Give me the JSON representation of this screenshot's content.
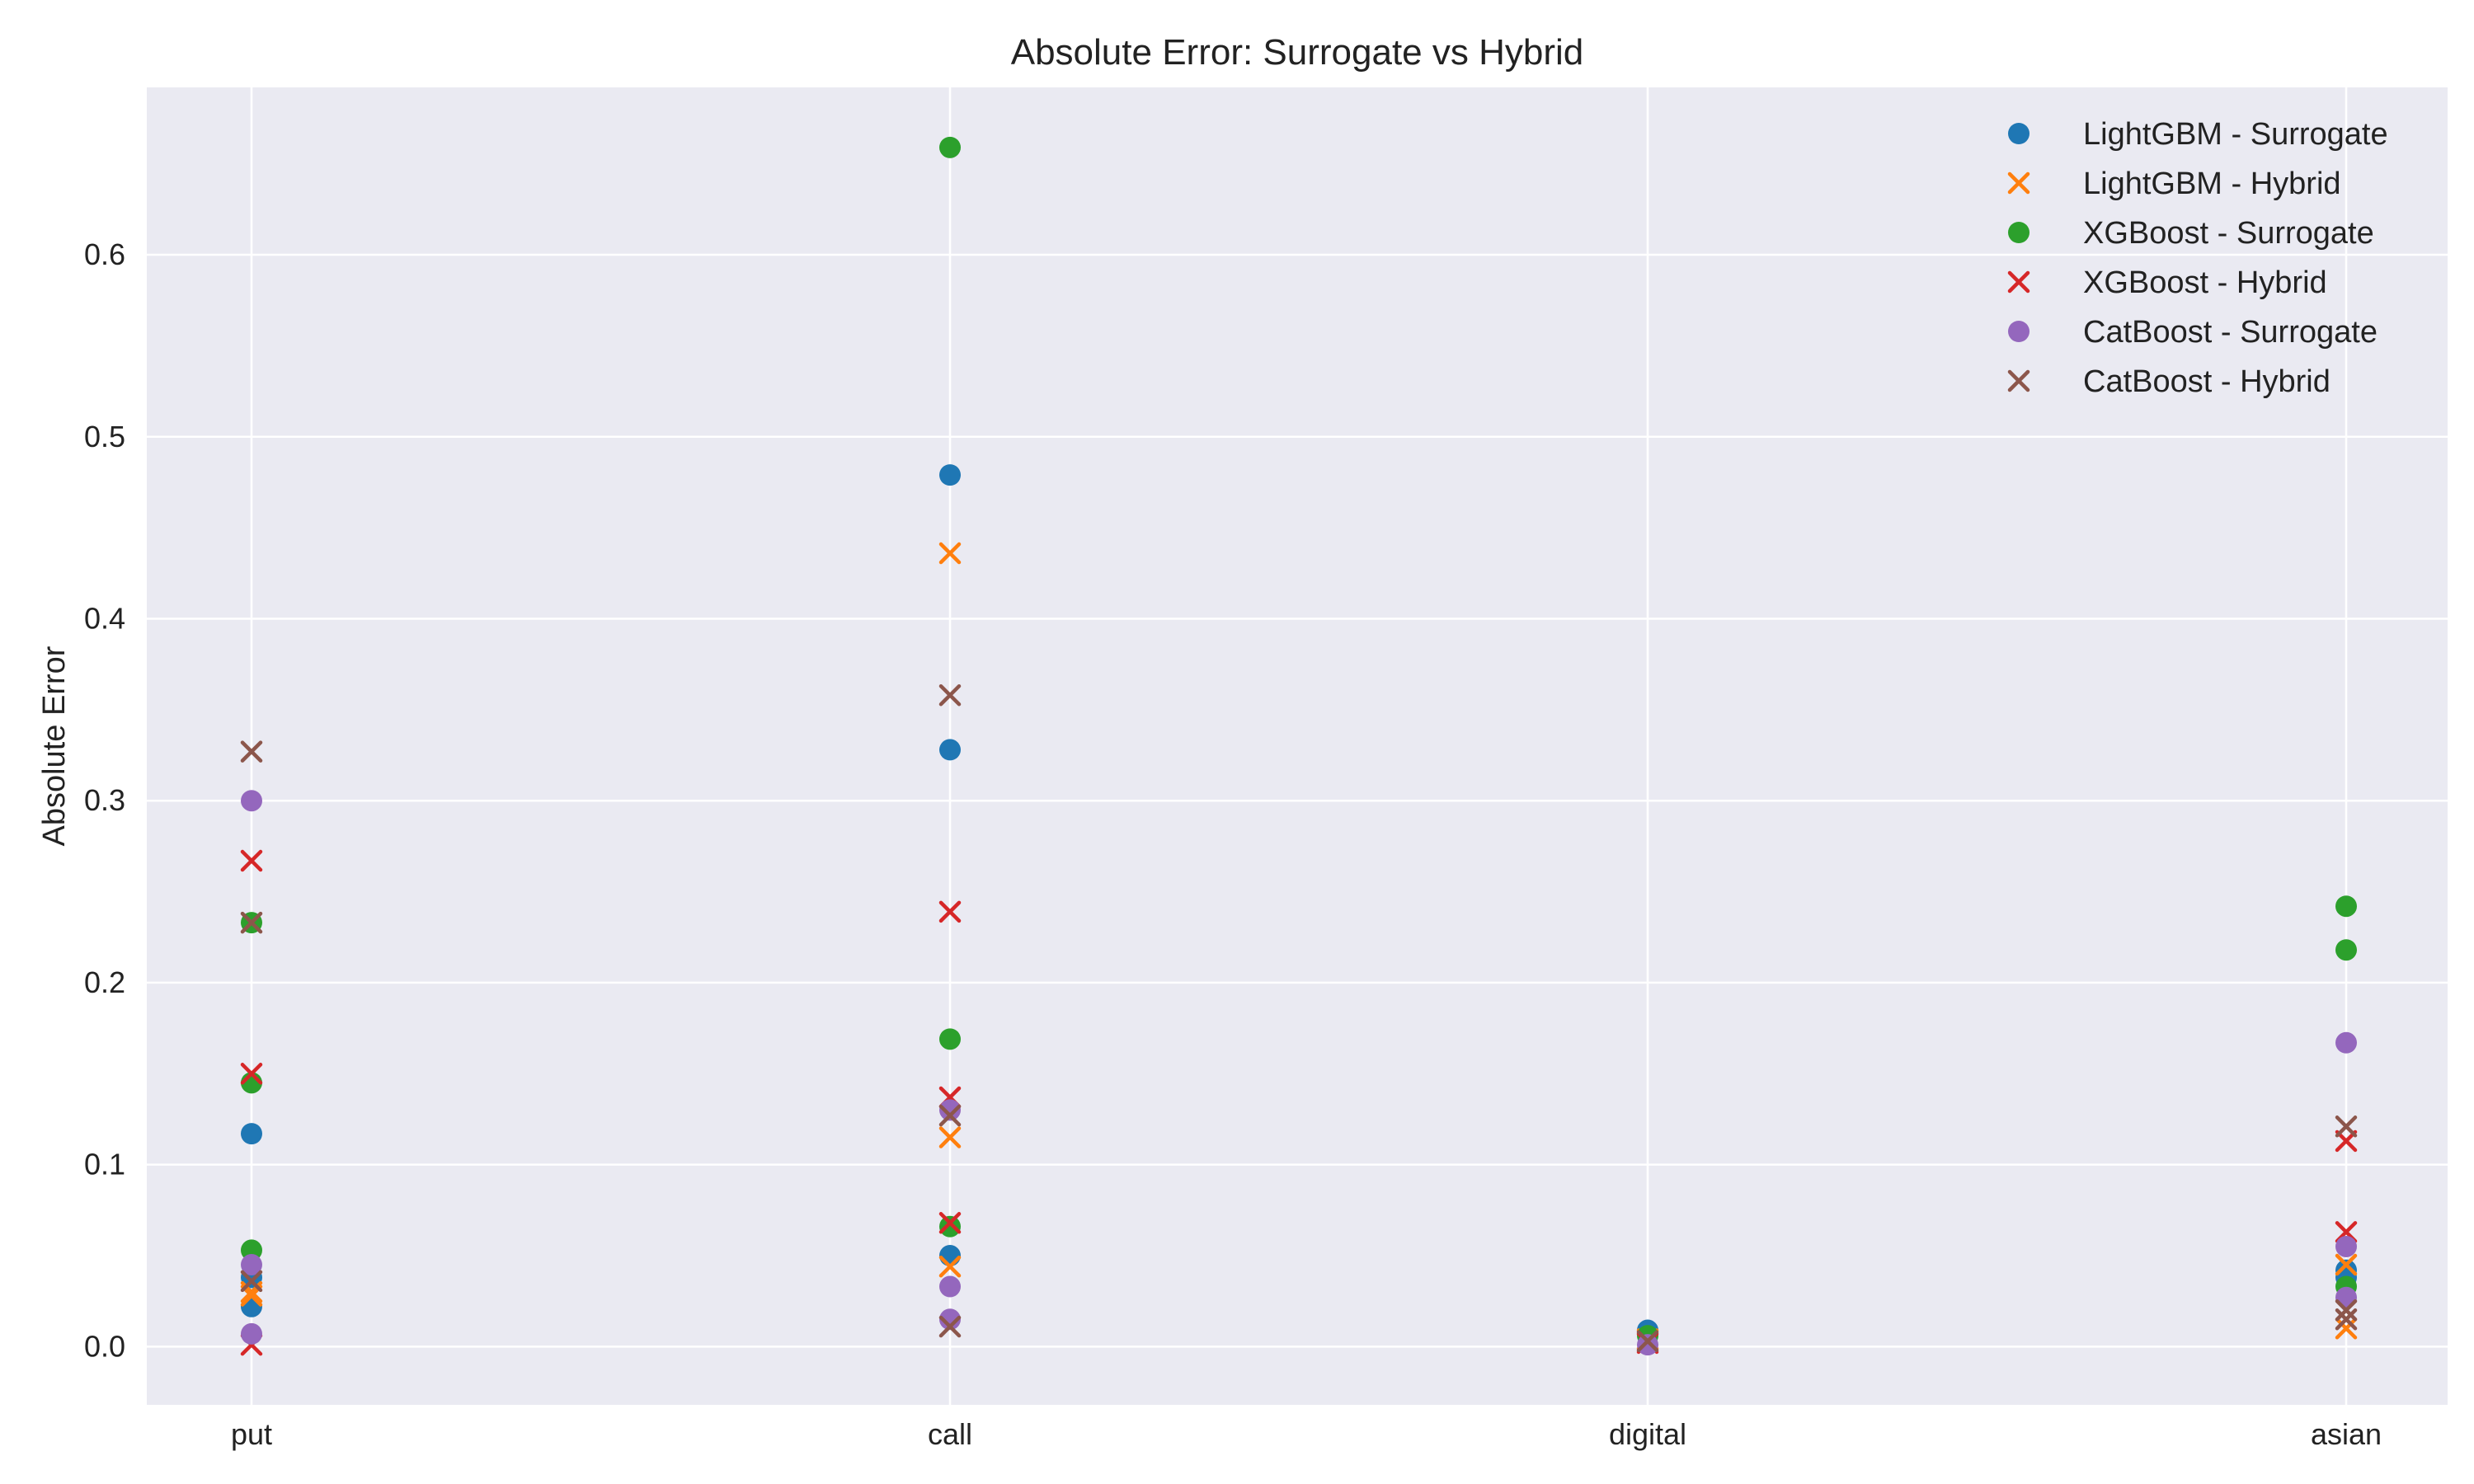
{
  "chart_data": {
    "type": "scatter",
    "title": "Absolute Error: Surrogate vs Hybrid",
    "xlabel": "",
    "ylabel": "Absolute Error",
    "categories": [
      "put",
      "call",
      "digital",
      "asian"
    ],
    "ylim": [
      -0.032,
      0.692
    ],
    "yticks": [
      0.0,
      0.1,
      0.2,
      0.3,
      0.4,
      0.5,
      0.6
    ],
    "grid": true,
    "background": "#eaeaf2",
    "legend_position": "top-right",
    "series": [
      {
        "name": "LightGBM - Surrogate",
        "marker": "circle",
        "color": "#1f77b4",
        "points": [
          {
            "x": "put",
            "y": 0.117
          },
          {
            "x": "put",
            "y": 0.038
          },
          {
            "x": "put",
            "y": 0.022
          },
          {
            "x": "call",
            "y": 0.479
          },
          {
            "x": "call",
            "y": 0.328
          },
          {
            "x": "call",
            "y": 0.05
          },
          {
            "x": "digital",
            "y": 0.009
          },
          {
            "x": "asian",
            "y": 0.042
          },
          {
            "x": "asian",
            "y": 0.038
          }
        ]
      },
      {
        "name": "LightGBM - Hybrid",
        "marker": "x",
        "color": "#ff7f0e",
        "points": [
          {
            "x": "put",
            "y": 0.03
          },
          {
            "x": "put",
            "y": 0.028
          },
          {
            "x": "call",
            "y": 0.436
          },
          {
            "x": "call",
            "y": 0.115
          },
          {
            "x": "call",
            "y": 0.044
          },
          {
            "x": "digital",
            "y": 0.004
          },
          {
            "x": "asian",
            "y": 0.01
          },
          {
            "x": "asian",
            "y": 0.045
          }
        ]
      },
      {
        "name": "XGBoost - Surrogate",
        "marker": "circle",
        "color": "#2ca02c",
        "points": [
          {
            "x": "put",
            "y": 0.233
          },
          {
            "x": "put",
            "y": 0.145
          },
          {
            "x": "put",
            "y": 0.053
          },
          {
            "x": "call",
            "y": 0.659
          },
          {
            "x": "call",
            "y": 0.169
          },
          {
            "x": "call",
            "y": 0.066
          },
          {
            "x": "digital",
            "y": 0.006
          },
          {
            "x": "asian",
            "y": 0.242
          },
          {
            "x": "asian",
            "y": 0.218
          },
          {
            "x": "asian",
            "y": 0.033
          }
        ]
      },
      {
        "name": "XGBoost - Hybrid",
        "marker": "x",
        "color": "#d62728",
        "points": [
          {
            "x": "put",
            "y": 0.267
          },
          {
            "x": "put",
            "y": 0.15
          },
          {
            "x": "put",
            "y": 0.001
          },
          {
            "x": "call",
            "y": 0.239
          },
          {
            "x": "call",
            "y": 0.137
          },
          {
            "x": "call",
            "y": 0.068
          },
          {
            "x": "digital",
            "y": 0.002
          },
          {
            "x": "asian",
            "y": 0.113
          },
          {
            "x": "asian",
            "y": 0.063
          }
        ]
      },
      {
        "name": "CatBoost - Surrogate",
        "marker": "circle",
        "color": "#9467bd",
        "points": [
          {
            "x": "put",
            "y": 0.3
          },
          {
            "x": "put",
            "y": 0.045
          },
          {
            "x": "put",
            "y": 0.007
          },
          {
            "x": "call",
            "y": 0.13
          },
          {
            "x": "call",
            "y": 0.033
          },
          {
            "x": "call",
            "y": 0.015
          },
          {
            "x": "digital",
            "y": 0.001
          },
          {
            "x": "asian",
            "y": 0.167
          },
          {
            "x": "asian",
            "y": 0.055
          },
          {
            "x": "asian",
            "y": 0.027
          }
        ]
      },
      {
        "name": "CatBoost - Hybrid",
        "marker": "x",
        "color": "#8c564b",
        "points": [
          {
            "x": "put",
            "y": 0.327
          },
          {
            "x": "put",
            "y": 0.233
          },
          {
            "x": "put",
            "y": 0.036
          },
          {
            "x": "call",
            "y": 0.358
          },
          {
            "x": "call",
            "y": 0.127
          },
          {
            "x": "call",
            "y": 0.011
          },
          {
            "x": "digital",
            "y": 0.003
          },
          {
            "x": "asian",
            "y": 0.121
          },
          {
            "x": "asian",
            "y": 0.02
          },
          {
            "x": "asian",
            "y": 0.015
          }
        ]
      }
    ]
  }
}
